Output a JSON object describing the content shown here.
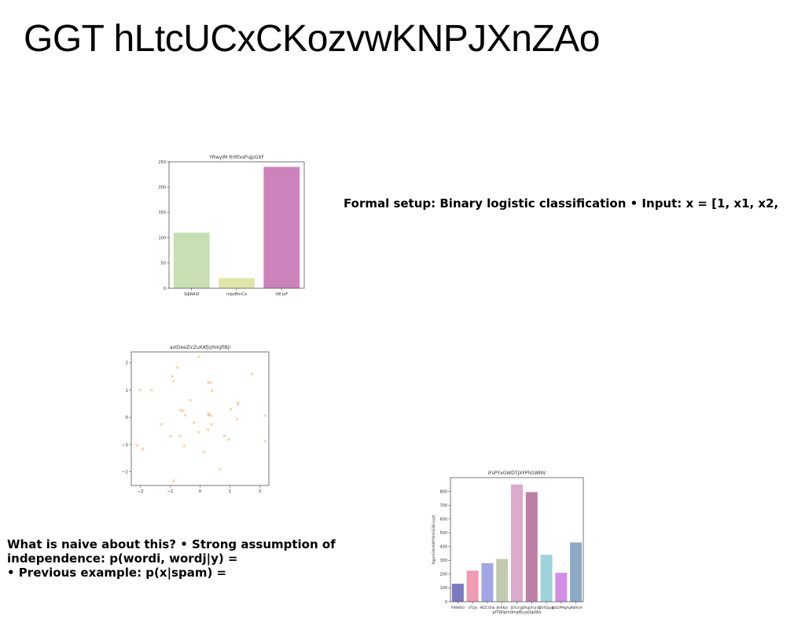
{
  "slide": {
    "title": "GGT hLtcUCxCKozvwKNPJXnZAo",
    "setup_text": "Formal setup: Binary logistic classification • Input: x = [1, x1, x2,",
    "naive_lines": [
      "What is naive about this? • Strong assumption of",
      "independence: p(wordi, wordj|y) =",
      "• Previous example: p(x|spam) ="
    ]
  },
  "chart_data": [
    {
      "type": "bar",
      "title": "YRwyIM RrRfxsPuJpGXF",
      "categories": [
        "SdJRASf",
        "mpzBtnCa",
        "tW JoF"
      ],
      "values": [
        110,
        20,
        240
      ],
      "colors": [
        "#c8dfb3",
        "#e0e5a8",
        "#cc82bb"
      ],
      "ylim": [
        0,
        250
      ],
      "yticks": [
        0,
        50,
        100,
        150,
        200,
        250
      ],
      "xlabel": "",
      "ylabel": ""
    },
    {
      "type": "scatter",
      "title": "aolDeeZicZuKAfjqYotgfIBji",
      "marker": "x",
      "color": "#f0c48e",
      "xlim": [
        -2.3,
        2.3
      ],
      "ylim": [
        -2.5,
        2.4
      ],
      "xticks": [
        -2,
        -1,
        0,
        1,
        2
      ],
      "yticks": [
        -2,
        -1,
        0,
        1,
        2
      ],
      "xtick_labels": [
        "−2",
        "−1",
        "0",
        "1",
        "2"
      ],
      "ytick_labels": [
        "−2",
        "−1",
        "0",
        "1",
        "2"
      ],
      "x": [
        -0.04,
        -0.75,
        -0.93,
        -0.88,
        -2.0,
        -1.63,
        1.73,
        0.35,
        0.28,
        0.4,
        1.27,
        1.27,
        1.03,
        2.17,
        -0.57,
        -0.32,
        -0.5,
        -0.65,
        0.29,
        0.29,
        0.36,
        -0.2,
        -0.05,
        0.26,
        0.38,
        1.24,
        0.81,
        0.96,
        2.17,
        -2.1,
        -1.92,
        -0.99,
        -1.3,
        -0.66,
        -0.53,
        0.14,
        0.66,
        -0.88
      ],
      "y": [
        2.22,
        1.83,
        1.49,
        1.33,
        1.0,
        0.99,
        1.59,
        1.27,
        1.28,
        0.98,
        0.54,
        0.48,
        0.3,
        0.06,
        0.24,
        0.62,
        0.08,
        0.26,
        0.13,
        0.08,
        0.07,
        -0.19,
        -0.55,
        -0.45,
        -0.27,
        -0.07,
        -0.68,
        -0.81,
        -0.87,
        -1.03,
        -1.17,
        -0.7,
        -0.26,
        -0.68,
        -1.05,
        -1.28,
        -1.9,
        -2.33
      ],
      "xlabel": "",
      "ylabel": ""
    },
    {
      "type": "bar",
      "title": "iFsPYxGWDTJXFPhGWNV",
      "categories": [
        "PiNWSO",
        "vTQjk",
        "MIZCOhb",
        "BkRKJx",
        "JEXLhjjj",
        "BhgUFuhSJ",
        "DVSQpjg",
        "WzDPMqAu",
        "JAWKxH"
      ],
      "values": [
        130,
        225,
        280,
        310,
        850,
        795,
        340,
        210,
        430
      ],
      "colors": [
        "#7a79c1",
        "#ee9bb3",
        "#a1a7e4",
        "#c2cbb0",
        "#dcaacb",
        "#bd7fa6",
        "#9ed3dc",
        "#d18ee7",
        "#8caac6"
      ],
      "ylim": [
        0,
        900
      ],
      "yticks": [
        0,
        100,
        200,
        300,
        400,
        500,
        600,
        700,
        800
      ],
      "xlabel": "pITWIpmdmaBLrpDqsWs",
      "ylabel": "PgpmGNzXWYNmGCBEzxqY"
    }
  ]
}
